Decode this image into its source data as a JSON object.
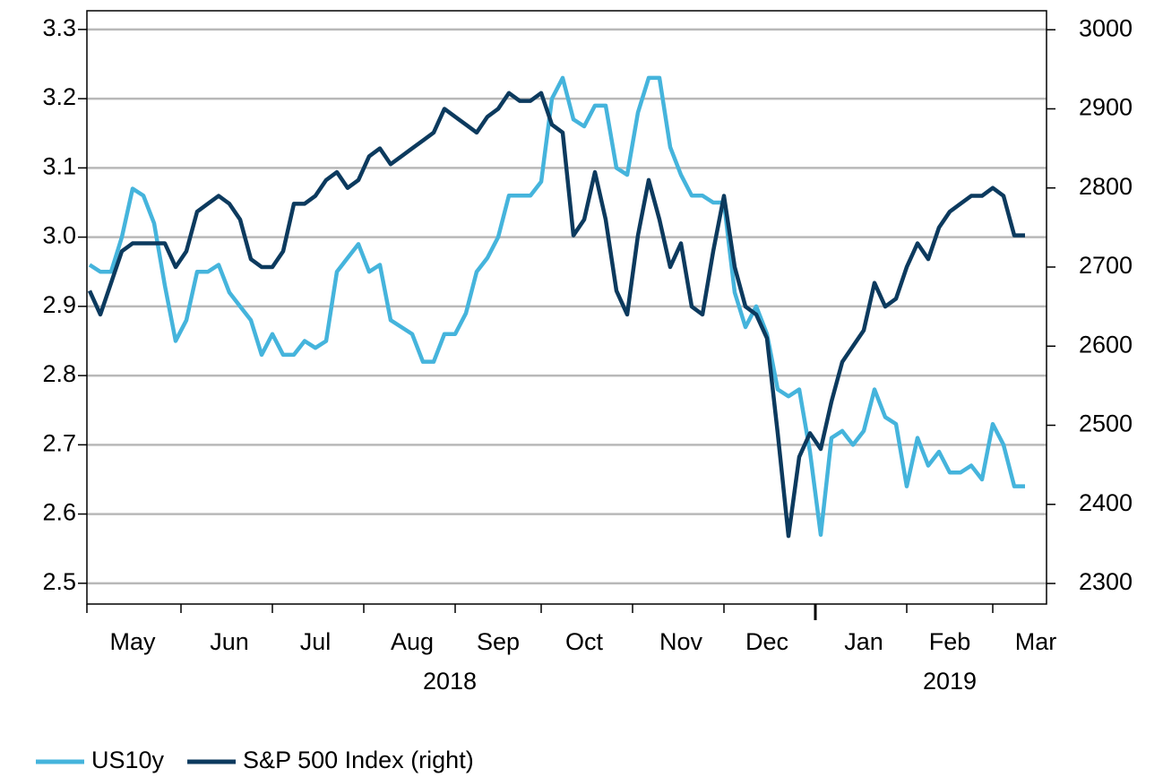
{
  "chart_data": {
    "type": "line",
    "categories": [
      null,
      null,
      null,
      null,
      "May",
      null,
      null,
      null,
      null,
      null,
      null,
      null,
      null,
      "Jun",
      null,
      null,
      null,
      null,
      null,
      null,
      null,
      "Jul",
      null,
      null,
      null,
      null,
      null,
      null,
      null,
      null,
      "Aug",
      null,
      null,
      null,
      null,
      null,
      null,
      null,
      "Sep",
      null,
      null,
      null,
      null,
      null,
      null,
      null,
      "Oct",
      null,
      null,
      null,
      null,
      null,
      null,
      null,
      null,
      "Nov",
      null,
      null,
      null,
      null,
      null,
      null,
      null,
      "Dec",
      null,
      null,
      null,
      null,
      null,
      null,
      null,
      null,
      "Jan",
      null,
      null,
      null,
      null,
      null,
      null,
      null,
      "Feb",
      null,
      null,
      null,
      null,
      null,
      null,
      null,
      "Mar",
      null
    ],
    "year_labels": [
      "2018",
      "2019"
    ],
    "series": [
      {
        "name": "US10y",
        "color": "#45b4dc",
        "axis": "y",
        "values": [
          2.96,
          2.95,
          2.95,
          3.0,
          3.07,
          3.06,
          3.02,
          2.93,
          2.85,
          2.88,
          2.95,
          2.95,
          2.96,
          2.92,
          2.9,
          2.88,
          2.83,
          2.86,
          2.83,
          2.83,
          2.85,
          2.84,
          2.85,
          2.95,
          2.97,
          2.99,
          2.95,
          2.96,
          2.88,
          2.87,
          2.86,
          2.82,
          2.82,
          2.86,
          2.86,
          2.89,
          2.95,
          2.97,
          3.0,
          3.06,
          3.06,
          3.06,
          3.08,
          3.2,
          3.23,
          3.17,
          3.16,
          3.19,
          3.19,
          3.1,
          3.09,
          3.18,
          3.23,
          3.23,
          3.13,
          3.09,
          3.06,
          3.06,
          3.05,
          3.05,
          2.92,
          2.87,
          2.9,
          2.86,
          2.78,
          2.77,
          2.78,
          2.69,
          2.57,
          2.71,
          2.72,
          2.7,
          2.72,
          2.78,
          2.74,
          2.73,
          2.64,
          2.71,
          2.67,
          2.69,
          2.66,
          2.66,
          2.67,
          2.65,
          2.73,
          2.7,
          2.64,
          2.64,
          null,
          null
        ]
      },
      {
        "name": "S&P 500 Index (right)",
        "color": "#0c3a5e",
        "axis": "y2",
        "values": [
          2670,
          2640,
          2680,
          2720,
          2730,
          2730,
          2730,
          2730,
          2700,
          2720,
          2770,
          2780,
          2790,
          2780,
          2760,
          2710,
          2700,
          2700,
          2720,
          2780,
          2780,
          2790,
          2810,
          2820,
          2800,
          2810,
          2840,
          2850,
          2830,
          2840,
          2850,
          2860,
          2870,
          2900,
          2890,
          2880,
          2870,
          2890,
          2900,
          2920,
          2910,
          2910,
          2920,
          2880,
          2870,
          2740,
          2760,
          2820,
          2760,
          2670,
          2640,
          2740,
          2810,
          2760,
          2700,
          2730,
          2650,
          2640,
          2720,
          2790,
          2700,
          2650,
          2640,
          2610,
          2490,
          2360,
          2460,
          2490,
          2470,
          2530,
          2580,
          2600,
          2620,
          2680,
          2650,
          2660,
          2700,
          2730,
          2710,
          2750,
          2770,
          2780,
          2790,
          2790,
          2800,
          2790,
          2740,
          2740,
          null,
          null
        ]
      }
    ],
    "ylim": [
      2.47,
      3.327
    ],
    "yticks": [
      2.5,
      2.6,
      2.7,
      2.8,
      2.9,
      {
        "value": 3.0,
        "label": "3.0"
      },
      3.1,
      3.2,
      3.3
    ],
    "y2lim": [
      2274,
      3024
    ],
    "y2ticks": [
      2300,
      2400,
      2500,
      2600,
      2700,
      2800,
      2900,
      3000
    ],
    "grid": true,
    "legend": "bottom-left"
  }
}
